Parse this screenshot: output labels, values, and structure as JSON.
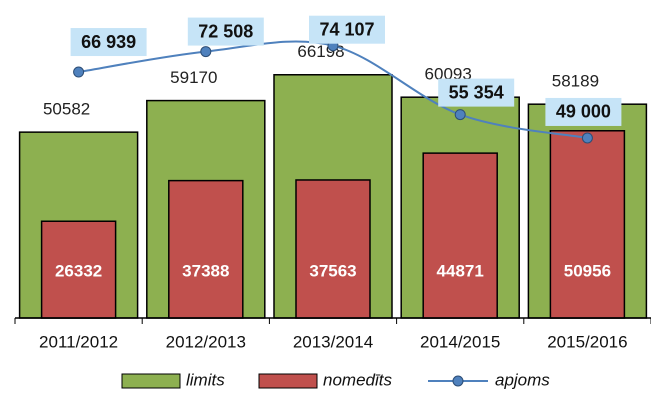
{
  "chart_data": {
    "type": "bar",
    "categories": [
      "2011/2012",
      "2012/2013",
      "2013/2014",
      "2014/2015",
      "2015/2016"
    ],
    "series": [
      {
        "name": "limits",
        "color": "#8db050",
        "values": [
          50582,
          59170,
          66198,
          60093,
          58189
        ]
      },
      {
        "name": "nomedīts",
        "color": "#c0504d",
        "values": [
          26332,
          37388,
          37563,
          44871,
          50956
        ]
      },
      {
        "name": "apjoms",
        "color": "#4f81bd",
        "type": "line",
        "values": [
          66939,
          72508,
          74107,
          55354,
          49000
        ],
        "value_labels": [
          "66 939",
          "72 508",
          "74 107",
          "55 354",
          "49 000"
        ]
      }
    ],
    "ylim": [
      0,
      86000
    ],
    "legend": "bottom"
  }
}
